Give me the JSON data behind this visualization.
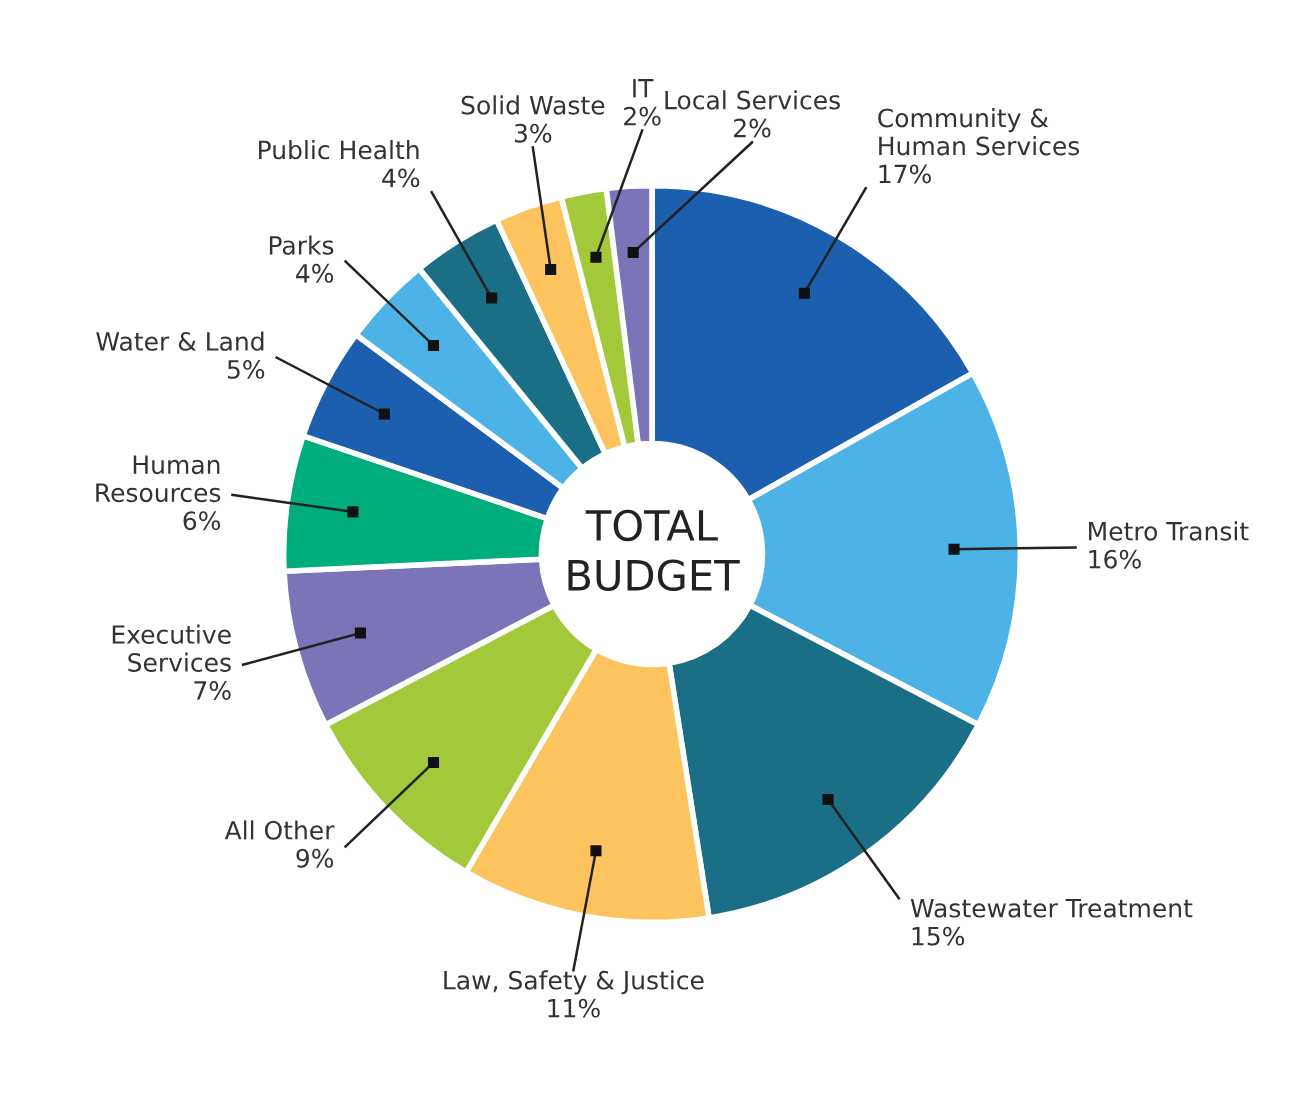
{
  "chart_data": {
    "type": "donut",
    "categories": [
      "Community &\nHuman Services",
      "Metro Transit",
      "Wastewater Treatment",
      "Law, Safety & Justice",
      "All Other",
      "Executive\nServices",
      "Human\nResources",
      "Water & Land",
      "Parks",
      "Public Health",
      "Solid Waste",
      "IT",
      "Local Services"
    ],
    "values": [
      17,
      16,
      15,
      11,
      9,
      7,
      6,
      5,
      4,
      4,
      3,
      2,
      2
    ],
    "value_labels": [
      "17%",
      "16%",
      "15%",
      "11%",
      "9%",
      "7%",
      "6%",
      "5%",
      "4%",
      "4%",
      "3%",
      "2%",
      "2%"
    ],
    "colors": [
      "#1c5fae",
      "#4db3e6",
      "#1a6e85",
      "#fcc35e",
      "#a3c93a",
      "#7b74b8",
      "#00ad7c",
      "#1c5fae",
      "#4db3e6",
      "#1a6e85",
      "#fcc35e",
      "#a3c93a",
      "#7b74b8"
    ],
    "annotations": [
      "TOTAL\nBUDGET"
    ]
  }
}
